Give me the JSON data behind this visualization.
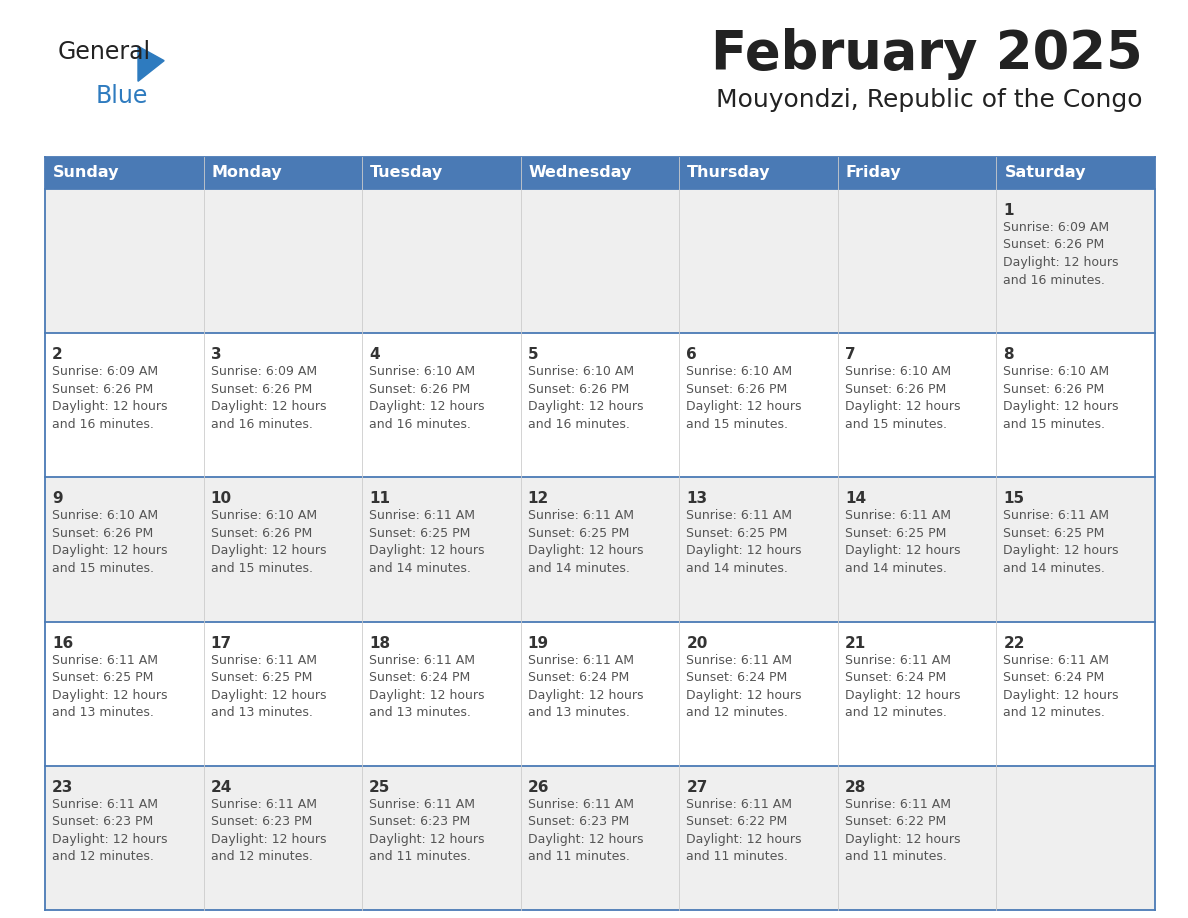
{
  "title": "February 2025",
  "subtitle": "Mouyondzi, Republic of the Congo",
  "header_bg": "#4a7ab5",
  "header_text": "#ffffff",
  "day_names": [
    "Sunday",
    "Monday",
    "Tuesday",
    "Wednesday",
    "Thursday",
    "Friday",
    "Saturday"
  ],
  "row_bg_odd": "#efefef",
  "row_bg_even": "#ffffff",
  "border_color": "#4a7ab5",
  "text_color": "#333333",
  "day_num_color": "#333333",
  "logo_text_color": "#222222",
  "logo_blue_color": "#2e7bbf",
  "title_fontsize": 38,
  "subtitle_fontsize": 18,
  "header_fontsize": 11.5,
  "day_num_fontsize": 11,
  "info_fontsize": 9,
  "calendar": [
    [
      {
        "day": 0,
        "info": ""
      },
      {
        "day": 0,
        "info": ""
      },
      {
        "day": 0,
        "info": ""
      },
      {
        "day": 0,
        "info": ""
      },
      {
        "day": 0,
        "info": ""
      },
      {
        "day": 0,
        "info": ""
      },
      {
        "day": 1,
        "info": "Sunrise: 6:09 AM\nSunset: 6:26 PM\nDaylight: 12 hours\nand 16 minutes."
      }
    ],
    [
      {
        "day": 2,
        "info": "Sunrise: 6:09 AM\nSunset: 6:26 PM\nDaylight: 12 hours\nand 16 minutes."
      },
      {
        "day": 3,
        "info": "Sunrise: 6:09 AM\nSunset: 6:26 PM\nDaylight: 12 hours\nand 16 minutes."
      },
      {
        "day": 4,
        "info": "Sunrise: 6:10 AM\nSunset: 6:26 PM\nDaylight: 12 hours\nand 16 minutes."
      },
      {
        "day": 5,
        "info": "Sunrise: 6:10 AM\nSunset: 6:26 PM\nDaylight: 12 hours\nand 16 minutes."
      },
      {
        "day": 6,
        "info": "Sunrise: 6:10 AM\nSunset: 6:26 PM\nDaylight: 12 hours\nand 15 minutes."
      },
      {
        "day": 7,
        "info": "Sunrise: 6:10 AM\nSunset: 6:26 PM\nDaylight: 12 hours\nand 15 minutes."
      },
      {
        "day": 8,
        "info": "Sunrise: 6:10 AM\nSunset: 6:26 PM\nDaylight: 12 hours\nand 15 minutes."
      }
    ],
    [
      {
        "day": 9,
        "info": "Sunrise: 6:10 AM\nSunset: 6:26 PM\nDaylight: 12 hours\nand 15 minutes."
      },
      {
        "day": 10,
        "info": "Sunrise: 6:10 AM\nSunset: 6:26 PM\nDaylight: 12 hours\nand 15 minutes."
      },
      {
        "day": 11,
        "info": "Sunrise: 6:11 AM\nSunset: 6:25 PM\nDaylight: 12 hours\nand 14 minutes."
      },
      {
        "day": 12,
        "info": "Sunrise: 6:11 AM\nSunset: 6:25 PM\nDaylight: 12 hours\nand 14 minutes."
      },
      {
        "day": 13,
        "info": "Sunrise: 6:11 AM\nSunset: 6:25 PM\nDaylight: 12 hours\nand 14 minutes."
      },
      {
        "day": 14,
        "info": "Sunrise: 6:11 AM\nSunset: 6:25 PM\nDaylight: 12 hours\nand 14 minutes."
      },
      {
        "day": 15,
        "info": "Sunrise: 6:11 AM\nSunset: 6:25 PM\nDaylight: 12 hours\nand 14 minutes."
      }
    ],
    [
      {
        "day": 16,
        "info": "Sunrise: 6:11 AM\nSunset: 6:25 PM\nDaylight: 12 hours\nand 13 minutes."
      },
      {
        "day": 17,
        "info": "Sunrise: 6:11 AM\nSunset: 6:25 PM\nDaylight: 12 hours\nand 13 minutes."
      },
      {
        "day": 18,
        "info": "Sunrise: 6:11 AM\nSunset: 6:24 PM\nDaylight: 12 hours\nand 13 minutes."
      },
      {
        "day": 19,
        "info": "Sunrise: 6:11 AM\nSunset: 6:24 PM\nDaylight: 12 hours\nand 13 minutes."
      },
      {
        "day": 20,
        "info": "Sunrise: 6:11 AM\nSunset: 6:24 PM\nDaylight: 12 hours\nand 12 minutes."
      },
      {
        "day": 21,
        "info": "Sunrise: 6:11 AM\nSunset: 6:24 PM\nDaylight: 12 hours\nand 12 minutes."
      },
      {
        "day": 22,
        "info": "Sunrise: 6:11 AM\nSunset: 6:24 PM\nDaylight: 12 hours\nand 12 minutes."
      }
    ],
    [
      {
        "day": 23,
        "info": "Sunrise: 6:11 AM\nSunset: 6:23 PM\nDaylight: 12 hours\nand 12 minutes."
      },
      {
        "day": 24,
        "info": "Sunrise: 6:11 AM\nSunset: 6:23 PM\nDaylight: 12 hours\nand 12 minutes."
      },
      {
        "day": 25,
        "info": "Sunrise: 6:11 AM\nSunset: 6:23 PM\nDaylight: 12 hours\nand 11 minutes."
      },
      {
        "day": 26,
        "info": "Sunrise: 6:11 AM\nSunset: 6:23 PM\nDaylight: 12 hours\nand 11 minutes."
      },
      {
        "day": 27,
        "info": "Sunrise: 6:11 AM\nSunset: 6:22 PM\nDaylight: 12 hours\nand 11 minutes."
      },
      {
        "day": 28,
        "info": "Sunrise: 6:11 AM\nSunset: 6:22 PM\nDaylight: 12 hours\nand 11 minutes."
      },
      {
        "day": 0,
        "info": ""
      }
    ]
  ]
}
